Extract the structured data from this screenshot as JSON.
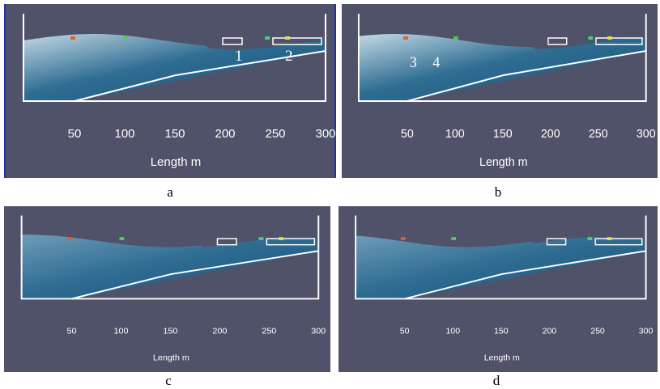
{
  "panels": [
    {
      "caption": "a",
      "axis_label": "Length m",
      "xticks": [
        50,
        100,
        150,
        200,
        250,
        300
      ],
      "markers": [
        "1",
        "2"
      ]
    },
    {
      "caption": "b",
      "axis_label": "Length m",
      "xticks": [
        50,
        100,
        150,
        200,
        250,
        300
      ],
      "markers": [
        "3",
        "4"
      ]
    },
    {
      "caption": "c",
      "axis_label": "Length m",
      "xticks": [
        50,
        100,
        150,
        200,
        250,
        300
      ]
    },
    {
      "caption": "d",
      "axis_label": "Length m",
      "xticks": [
        50,
        100,
        150,
        200,
        250,
        300
      ]
    }
  ]
}
